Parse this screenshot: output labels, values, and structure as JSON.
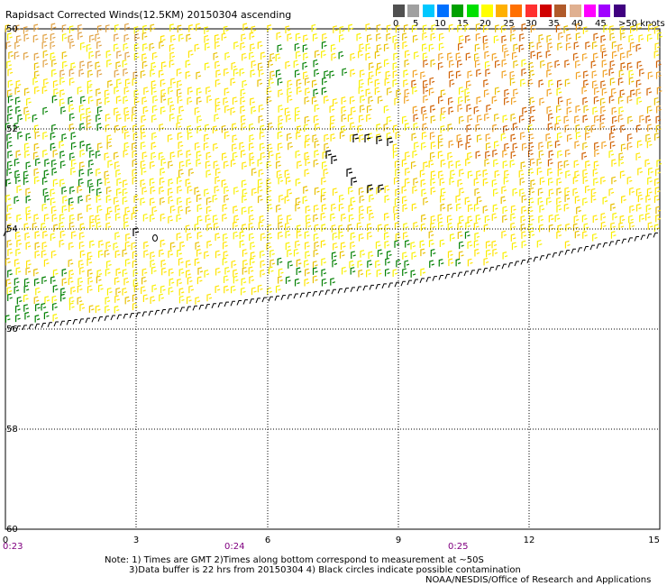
{
  "title": "Rapidsact Corrected Winds(12.5KM) 20150304 ascending",
  "legend": {
    "labels": [
      "0",
      "5",
      "10",
      "15",
      "20",
      "25",
      "30",
      "35",
      "40",
      "45",
      ">50 knots"
    ],
    "colors": [
      "#505050",
      "#a0a0a0",
      "#00c8ff",
      "#0070ff",
      "#00a000",
      "#00e000",
      "#ffff00",
      "#ffb000",
      "#ff7000",
      "#ff3030",
      "#d00000",
      "#b05a2a",
      "#e0b090",
      "#ff00ff",
      "#a000ff",
      "#400080"
    ]
  },
  "map": {
    "y_ticks": [
      "50",
      "52",
      "54",
      "56",
      "58",
      "60"
    ],
    "x_ticks": [
      "0",
      "3",
      "6",
      "9",
      "12",
      "15"
    ],
    "time_labels": [
      "0:23",
      "0:24",
      "0:25"
    ]
  },
  "notes": {
    "line1": "Note: 1) Times are GMT 2)Times along bottom correspond to measurement at ~50S",
    "line2": "3)Data buffer is 22 hrs from 20150304 4) Black circles indicate possible contamination",
    "credit": "NOAA/NESDIS/Office of Research and Applications"
  }
}
